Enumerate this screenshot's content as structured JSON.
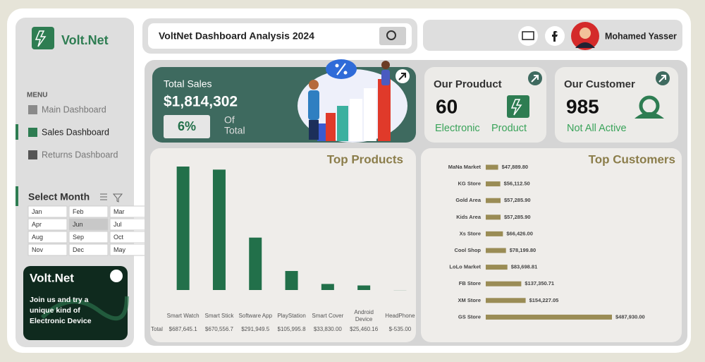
{
  "sidebar": {
    "logo": "Volt.Net",
    "menu_title": "MENU",
    "menu": [
      "Main Dashboard",
      "Sales Dashboard",
      "Returns Dashboard"
    ],
    "filter_title": "Select Month",
    "months": [
      "Jan",
      "Feb",
      "Mar",
      "Apr",
      "Jun",
      "Jul",
      "Aug",
      "Sep",
      "Oct",
      "Nov",
      "Dec",
      "May"
    ],
    "promo": {
      "title": "Volt.Net",
      "text": [
        "Join us and try a",
        "unique kind of",
        "Electronic Device"
      ]
    }
  },
  "header": {
    "title": "VoltNet Dashboard Analysis 2024",
    "user": "Mohamed Yasser"
  },
  "kpis": {
    "total_sales": {
      "title": "Total Sales",
      "value": 1814302,
      "value_label": "$1,814,302",
      "share": 6,
      "share_label": "6%",
      "share_caption": [
        "Of",
        "Total"
      ]
    },
    "product": {
      "title": "Our Prouduct",
      "value": 60,
      "caption": [
        "Electronic",
        "Product"
      ]
    },
    "customer": {
      "title": "Our Customer",
      "value": 985,
      "caption": "Not All Active"
    }
  },
  "top_products": {
    "type": "bar",
    "title": "Top Products",
    "row_label": "Total",
    "color": "#22704a",
    "categories": [
      "Smart Watch",
      "Smart Stick",
      "Software App",
      "PlayStation",
      "Smart Cover",
      "Android Device",
      "HeadPhone"
    ],
    "values": [
      687645.1,
      670556.7,
      291949.5,
      105995.8,
      33830.0,
      25460.16,
      -535.0
    ],
    "value_labels": [
      "$687,645.1",
      "$670,556.7",
      "$291,949.5",
      "$105,995.8",
      "$33,830.00",
      "$25,460.16",
      "$-535.00"
    ]
  },
  "top_customers": {
    "type": "bar",
    "orientation": "horizontal",
    "title": "Top Customers",
    "color": "#9a8c55",
    "categories": [
      "MaNa Market",
      "KG Store",
      "Gold Area",
      "Kids Area",
      "Xs Store",
      "Cool Shop",
      "LoLo Market",
      "FB Store",
      "XM Store",
      "GS Store"
    ],
    "values": [
      47889.8,
      56112.5,
      57285.9,
      57285.9,
      66426.0,
      78199.8,
      83698.81,
      137350.71,
      154227.05,
      487930.0
    ],
    "value_labels": [
      "$47,889.80",
      "$56,112.50",
      "$57,285.90",
      "$57,285.90",
      "$66,426.00",
      "$78,199.80",
      "$83,698.81",
      "$137,350.71",
      "$154,227.05",
      "$487,930.00"
    ]
  }
}
